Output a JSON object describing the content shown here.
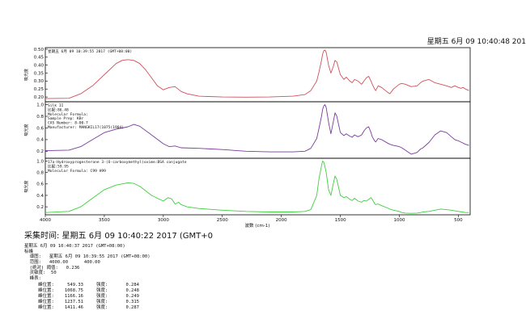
{
  "header": {
    "datetime": "星期五 6月 09 10:40:48 201"
  },
  "chart_data": {
    "type": "line",
    "xlabel": "波数 (cm-1)",
    "xlim": [
      4000,
      400
    ],
    "x_ticks": [
      4000,
      3500,
      3000,
      2500,
      2000,
      1500,
      1000,
      500
    ],
    "x_tick_labels": [
      "4000",
      "3500",
      "3000",
      "2500",
      "2000",
      "1500",
      "1000",
      "500"
    ],
    "panels": [
      {
        "ylabel": "吸光度",
        "ylim": [
          0.17,
          0.51
        ],
        "y_ticks": [
          0.2,
          0.25,
          0.3,
          0.35,
          0.4,
          0.45,
          0.5
        ],
        "y_tick_labels": [
          "0.20",
          "0.25",
          "0.30",
          "0.35",
          "0.40",
          "0.45",
          "0.50"
        ],
        "color": "#d0505a",
        "info": [
          "星期五 6月 09 10:39:55 2017 (GMT+08:00)"
        ],
        "x": [
          4000,
          3800,
          3700,
          3600,
          3500,
          3400,
          3350,
          3300,
          3250,
          3200,
          3150,
          3100,
          3050,
          3000,
          2950,
          2900,
          2850,
          2800,
          2700,
          2500,
          2300,
          2100,
          1900,
          1800,
          1750,
          1700,
          1680,
          1660,
          1650,
          1640,
          1630,
          1620,
          1600,
          1580,
          1560,
          1545,
          1530,
          1500,
          1470,
          1450,
          1420,
          1400,
          1380,
          1350,
          1320,
          1300,
          1280,
          1260,
          1240,
          1230,
          1210,
          1200,
          1180,
          1150,
          1100,
          1080,
          1050,
          1000,
          980,
          950,
          900,
          850,
          820,
          800,
          750,
          700,
          650,
          600,
          560,
          530,
          500,
          480,
          460,
          440,
          410
        ],
        "values": [
          0.19,
          0.192,
          0.22,
          0.27,
          0.34,
          0.41,
          0.43,
          0.435,
          0.43,
          0.41,
          0.37,
          0.32,
          0.27,
          0.245,
          0.26,
          0.265,
          0.235,
          0.22,
          0.205,
          0.2,
          0.199,
          0.2,
          0.205,
          0.215,
          0.24,
          0.3,
          0.36,
          0.43,
          0.47,
          0.49,
          0.495,
          0.48,
          0.4,
          0.35,
          0.39,
          0.43,
          0.42,
          0.34,
          0.31,
          0.325,
          0.3,
          0.29,
          0.31,
          0.3,
          0.28,
          0.3,
          0.32,
          0.33,
          0.3,
          0.28,
          0.25,
          0.24,
          0.27,
          0.26,
          0.23,
          0.22,
          0.25,
          0.28,
          0.285,
          0.28,
          0.265,
          0.27,
          0.29,
          0.3,
          0.31,
          0.29,
          0.28,
          0.27,
          0.26,
          0.27,
          0.26,
          0.255,
          0.26,
          0.25,
          0.24
        ]
      },
      {
        "ylabel": "吸光度",
        "ylim": [
          0.08,
          1.05
        ],
        "y_ticks": [
          0.2,
          0.4,
          0.6,
          0.8,
          1.0
        ],
        "y_tick_labels": [
          "0.2",
          "0.4",
          "0.6",
          "0.8",
          "1.0"
        ],
        "color": "#7a3a9e",
        "info": [
          "Silk II",
          "比配:86.48",
          "Molecular Formula:",
          "Sample Prep:  KBr",
          "CAS Number:         8-00-7",
          "Manufacturer: MANGKIL17(1075(1904)"
        ],
        "x": [
          4000,
          3800,
          3700,
          3600,
          3500,
          3400,
          3350,
          3300,
          3250,
          3200,
          3100,
          3000,
          2950,
          2900,
          2850,
          2700,
          2500,
          2300,
          2100,
          1900,
          1800,
          1750,
          1700,
          1680,
          1660,
          1650,
          1640,
          1630,
          1620,
          1600,
          1580,
          1560,
          1545,
          1530,
          1500,
          1470,
          1450,
          1420,
          1400,
          1380,
          1350,
          1320,
          1300,
          1280,
          1260,
          1240,
          1230,
          1210,
          1200,
          1180,
          1150,
          1100,
          1080,
          1050,
          1000,
          980,
          950,
          900,
          850,
          820,
          800,
          750,
          700,
          650,
          600,
          560,
          530,
          500,
          470,
          440,
          410
        ],
        "values": [
          0.21,
          0.22,
          0.28,
          0.4,
          0.52,
          0.58,
          0.6,
          0.62,
          0.66,
          0.63,
          0.48,
          0.33,
          0.28,
          0.29,
          0.26,
          0.25,
          0.23,
          0.2,
          0.19,
          0.19,
          0.2,
          0.25,
          0.42,
          0.6,
          0.8,
          0.92,
          0.98,
          1.0,
          0.95,
          0.7,
          0.5,
          0.7,
          0.86,
          0.8,
          0.52,
          0.47,
          0.5,
          0.46,
          0.44,
          0.48,
          0.45,
          0.48,
          0.55,
          0.6,
          0.62,
          0.52,
          0.45,
          0.38,
          0.36,
          0.42,
          0.4,
          0.34,
          0.32,
          0.3,
          0.28,
          0.26,
          0.22,
          0.15,
          0.18,
          0.24,
          0.26,
          0.35,
          0.48,
          0.55,
          0.52,
          0.45,
          0.4,
          0.38,
          0.35,
          0.32,
          0.3
        ]
      },
      {
        "ylabel": "吸光度",
        "ylim": [
          0.06,
          1.05
        ],
        "y_ticks": [
          0.2,
          0.4,
          0.6,
          0.8,
          1.0
        ],
        "y_tick_labels": [
          "0.2",
          "0.4",
          "0.6",
          "0.8",
          "1.0"
        ],
        "color": "#3ecf3e",
        "info": [
          "17a-Hydroxyprogesterone 3-(O-carboxymethyl)oxime:BSA conjugate",
          "比配:59.95",
          "Molecular Formula:   C99 H99"
        ],
        "x": [
          4000,
          3800,
          3700,
          3600,
          3500,
          3400,
          3350,
          3300,
          3250,
          3200,
          3100,
          3000,
          2960,
          2930,
          2900,
          2870,
          2850,
          2800,
          2700,
          2500,
          2300,
          2100,
          1900,
          1800,
          1750,
          1700,
          1680,
          1660,
          1650,
          1640,
          1630,
          1620,
          1600,
          1580,
          1560,
          1545,
          1530,
          1500,
          1470,
          1450,
          1420,
          1400,
          1380,
          1350,
          1320,
          1300,
          1280,
          1260,
          1240,
          1230,
          1210,
          1200,
          1180,
          1150,
          1100,
          1080,
          1050,
          1000,
          980,
          950,
          900,
          850,
          820,
          800,
          750,
          700,
          650,
          600,
          560,
          530,
          500,
          470,
          440,
          410
        ],
        "values": [
          0.1,
          0.12,
          0.2,
          0.35,
          0.5,
          0.58,
          0.6,
          0.62,
          0.61,
          0.56,
          0.4,
          0.3,
          0.36,
          0.34,
          0.25,
          0.28,
          0.24,
          0.2,
          0.17,
          0.14,
          0.12,
          0.11,
          0.11,
          0.12,
          0.15,
          0.4,
          0.7,
          0.92,
          1.0,
          0.98,
          0.9,
          0.8,
          0.5,
          0.4,
          0.6,
          0.74,
          0.68,
          0.4,
          0.36,
          0.38,
          0.33,
          0.31,
          0.35,
          0.3,
          0.28,
          0.31,
          0.3,
          0.33,
          0.36,
          0.33,
          0.26,
          0.24,
          0.25,
          0.22,
          0.18,
          0.16,
          0.14,
          0.12,
          0.1,
          0.09,
          0.085,
          0.09,
          0.1,
          0.11,
          0.12,
          0.14,
          0.16,
          0.15,
          0.14,
          0.13,
          0.12,
          0.11,
          0.1,
          0.1
        ]
      }
    ]
  },
  "acquisition": {
    "label": "采集时间: 星期五 6月 09 10:40:22 2017 (GMT+0"
  },
  "report": {
    "lines": [
      "星期五 6月 09 10:40:37 2017 (GMT+08:00)",
      "标峰",
      "  谱图:   星期五 6月 09 10:39:55 2017 (GMT+08:00)",
      "  范围:   4000.00      400.00",
      "  (绝对) 阈值:   0.236",
      "  灵敏度:  50",
      "  峰表:"
    ]
  },
  "peaks": [
    {
      "label": "峰位置:",
      "position": "549.33",
      "intensity_label": "强度:",
      "intensity": "0.284"
    },
    {
      "label": "峰位置:",
      "position": "1068.75",
      "intensity_label": "强度:",
      "intensity": "0.248"
    },
    {
      "label": "峰位置:",
      "position": "1166.16",
      "intensity_label": "强度:",
      "intensity": "0.249"
    },
    {
      "label": "峰位置:",
      "position": "1237.51",
      "intensity_label": "强度:",
      "intensity": "0.315"
    },
    {
      "label": "峰位置:",
      "position": "1411.46",
      "intensity_label": "强度:",
      "intensity": "0.287"
    }
  ]
}
